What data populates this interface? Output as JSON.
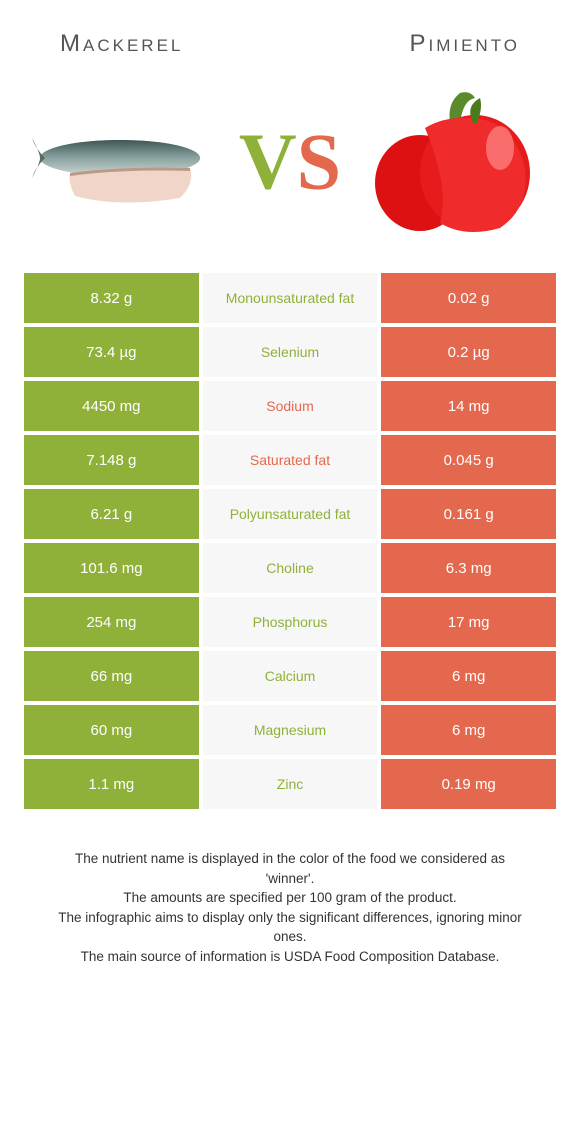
{
  "titles": {
    "left": "Mackerel",
    "right": "Pimiento"
  },
  "vs": {
    "v_color": "#8fb13a",
    "s_color": "#e4684d"
  },
  "colors": {
    "left_bg": "#8fb13a",
    "right_bg": "#e4684d",
    "mid_bg": "#f7f7f7",
    "left_text": "#ffffff",
    "right_text": "#ffffff",
    "winner_left_label": "#8fb13a",
    "winner_right_label": "#e4684d"
  },
  "rows": [
    {
      "left": "8.32 g",
      "label": "Monounsaturated fat",
      "right": "0.02 g",
      "winner": "left"
    },
    {
      "left": "73.4 µg",
      "label": "Selenium",
      "right": "0.2 µg",
      "winner": "left"
    },
    {
      "left": "4450 mg",
      "label": "Sodium",
      "right": "14 mg",
      "winner": "right"
    },
    {
      "left": "7.148 g",
      "label": "Saturated fat",
      "right": "0.045 g",
      "winner": "right"
    },
    {
      "left": "6.21 g",
      "label": "Polyunsaturated fat",
      "right": "0.161 g",
      "winner": "left"
    },
    {
      "left": "101.6 mg",
      "label": "Choline",
      "right": "6.3 mg",
      "winner": "left"
    },
    {
      "left": "254 mg",
      "label": "Phosphorus",
      "right": "17 mg",
      "winner": "left"
    },
    {
      "left": "66 mg",
      "label": "Calcium",
      "right": "6 mg",
      "winner": "left"
    },
    {
      "left": "60 mg",
      "label": "Magnesium",
      "right": "6 mg",
      "winner": "left"
    },
    {
      "left": "1.1 mg",
      "label": "Zinc",
      "right": "0.19 mg",
      "winner": "left"
    }
  ],
  "footer": {
    "l1": "The nutrient name is displayed in the color of the food we considered as 'winner'.",
    "l2": "The amounts are specified per 100 gram of the product.",
    "l3": "The infographic aims to display only the significant differences, ignoring minor ones.",
    "l4": "The main source of information is USDA Food Composition Database."
  }
}
